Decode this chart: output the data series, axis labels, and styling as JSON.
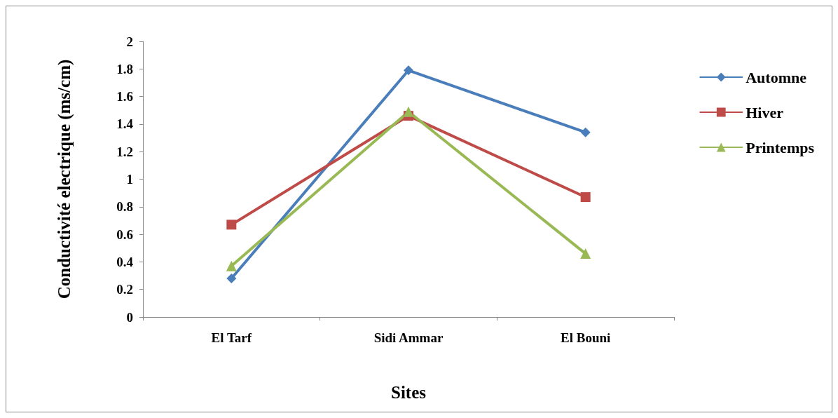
{
  "chart_data": {
    "type": "line",
    "xlabel": "Sites",
    "ylabel": "Conductivité electrique (ms/cm)",
    "categories": [
      "El Tarf",
      "Sidi Ammar",
      "El Bouni"
    ],
    "series": [
      {
        "name": "Automne",
        "color": "#4a7ebb",
        "values": [
          0.28,
          1.79,
          1.34
        ],
        "marker": "diamond"
      },
      {
        "name": "Hiver",
        "color": "#be4b48",
        "values": [
          0.67,
          1.46,
          0.87
        ],
        "marker": "square"
      },
      {
        "name": "Printemps",
        "color": "#98b954",
        "values": [
          0.37,
          1.49,
          0.46
        ],
        "marker": "triangle"
      }
    ],
    "ylim": [
      0,
      2
    ],
    "yticks": [
      0,
      0.2,
      0.4,
      0.6,
      0.8,
      1,
      1.2,
      1.4,
      1.6,
      1.8,
      2
    ],
    "grid": false,
    "legend": "right",
    "line_style": "solid"
  }
}
